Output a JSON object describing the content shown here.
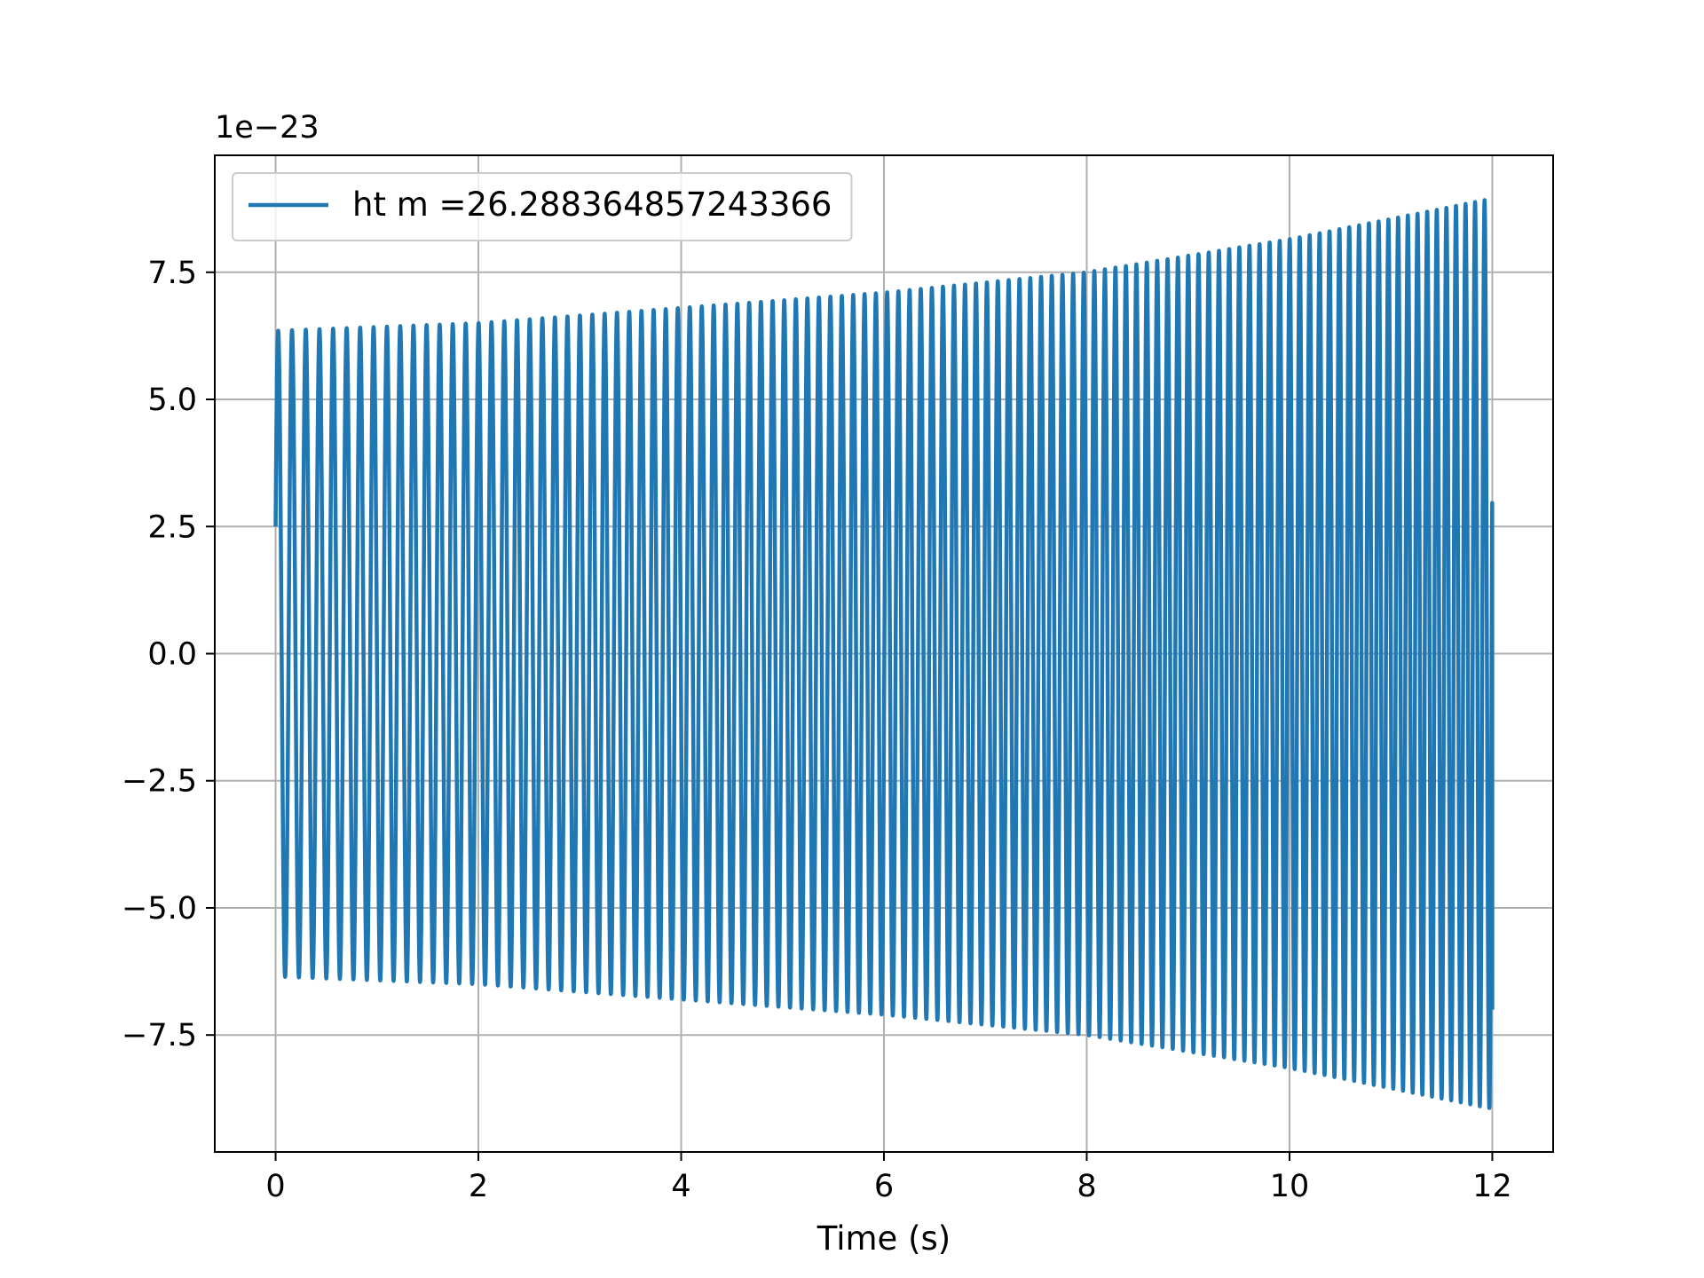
{
  "chart_data": {
    "type": "line",
    "xlabel": "Time (s)",
    "ylabel": "",
    "y_offset_label": "1e−23",
    "xlim": [
      -0.6,
      12.6
    ],
    "ylim": [
      -9.8,
      9.8
    ],
    "x_ticks": [
      0,
      2,
      4,
      6,
      8,
      10,
      12
    ],
    "x_tick_labels": [
      "0",
      "2",
      "4",
      "6",
      "8",
      "10",
      "12"
    ],
    "y_ticks": [
      7.5,
      5.0,
      2.5,
      0.0,
      -2.5,
      -5.0,
      -7.5
    ],
    "y_tick_labels": [
      "7.5",
      "5.0",
      "2.5",
      "0.0",
      "−2.5",
      "−5.0",
      "−7.5"
    ],
    "grid": true,
    "legend_position": "upper-left",
    "series": [
      {
        "name": "ht m =26.288364857243366",
        "color": "#1f77b4",
        "kind": "chirp",
        "x_start": 0,
        "x_end": 12,
        "amplitude_envelope": [
          {
            "x": 0,
            "y": 6.35
          },
          {
            "x": 2,
            "y": 6.5
          },
          {
            "x": 4,
            "y": 6.8
          },
          {
            "x": 6,
            "y": 7.1
          },
          {
            "x": 8,
            "y": 7.5
          },
          {
            "x": 10,
            "y": 8.15
          },
          {
            "x": 12,
            "y": 8.95
          }
        ],
        "frequency_hz": [
          {
            "x": 0,
            "y": 7.3
          },
          {
            "x": 12,
            "y": 10.7
          }
        ],
        "start_value": 2.5,
        "end_value": -7.0
      }
    ]
  }
}
